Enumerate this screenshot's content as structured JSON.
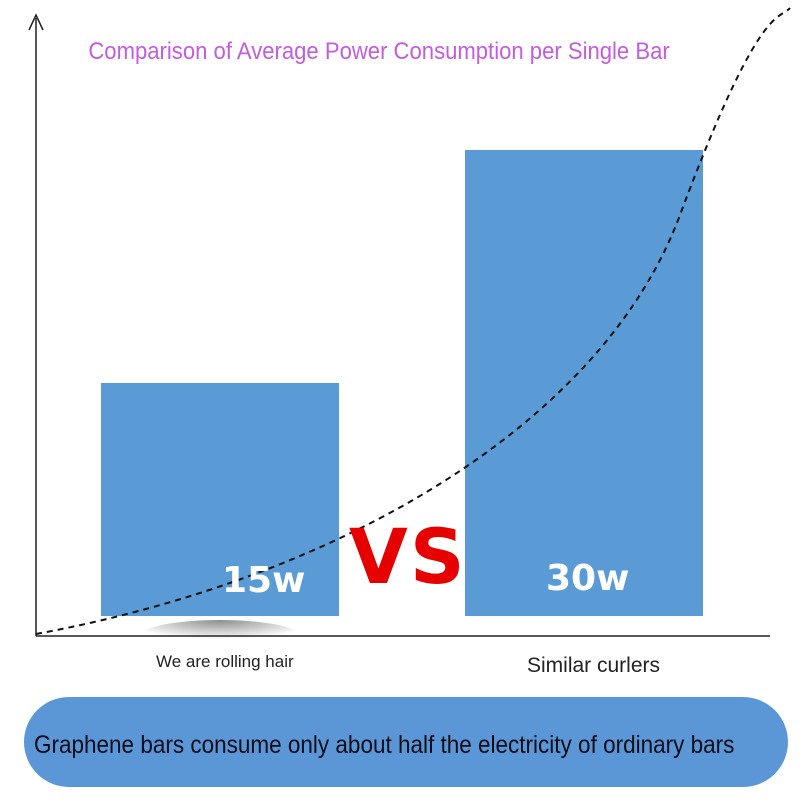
{
  "chart_data": {
    "type": "bar",
    "title": "Comparison of Average Power Consumption per Single Bar",
    "categories": [
      "We are rolling hair",
      "Similar curlers"
    ],
    "values": [
      15,
      30
    ],
    "value_labels": [
      "15w",
      "30w"
    ],
    "unit": "w",
    "ylim": [
      0,
      35
    ],
    "grid": false,
    "annotations": [
      "VS"
    ],
    "colors": {
      "bar": "#5b9bd5",
      "title": "#c45ce0",
      "vs": "#e60000",
      "banner": "#5b97d6"
    },
    "trend_curve": "dashed-exponential"
  },
  "banner": {
    "text": "Graphene bars consume only about half the electricity of ordinary bars"
  }
}
